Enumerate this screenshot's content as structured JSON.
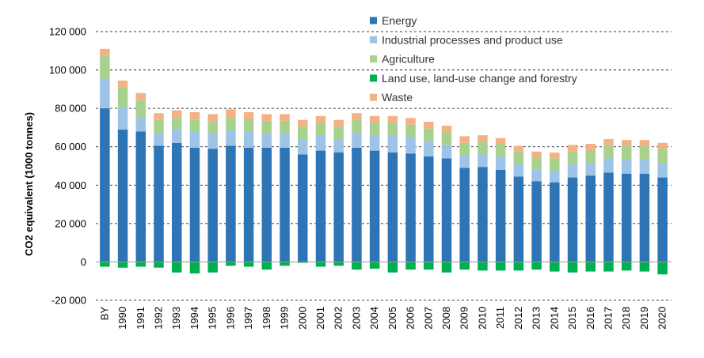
{
  "chart_data": {
    "type": "bar",
    "stacked": true,
    "ylabel": "CO2 equivalent (1000 tonnes)",
    "ylim": [
      -20000,
      120000
    ],
    "ytick_step": 20000,
    "ytick_labels": [
      "-20 000",
      "0",
      "20 000",
      "40 000",
      "60 000",
      "80 000",
      "100 000",
      "120 000"
    ],
    "grid": "horizontal dashed",
    "legend_position": "top-right",
    "categories": [
      "BY",
      "1990",
      "1991",
      "1992",
      "1993",
      "1994",
      "1995",
      "1996",
      "1997",
      "1998",
      "1999",
      "2000",
      "2001",
      "2002",
      "2003",
      "2004",
      "2005",
      "2006",
      "2007",
      "2008",
      "2009",
      "2010",
      "2011",
      "2012",
      "2013",
      "2014",
      "2015",
      "2016",
      "2017",
      "2018",
      "2019",
      "2020"
    ],
    "series": [
      {
        "name": "Energy",
        "color": "#2E75B6",
        "values": [
          80000,
          69000,
          68000,
          60500,
          62000,
          59500,
          59000,
          60500,
          59500,
          59500,
          59500,
          56000,
          58000,
          57000,
          59500,
          58000,
          57000,
          56500,
          55000,
          54000,
          49000,
          49500,
          48000,
          44500,
          42000,
          41500,
          44000,
          45000,
          46500,
          46000,
          46000,
          44000
        ]
      },
      {
        "name": "Industrial processes and product use",
        "color": "#9DC3E6",
        "values": [
          15500,
          11500,
          7500,
          6500,
          7000,
          8500,
          8000,
          8000,
          8500,
          7500,
          7500,
          8000,
          8000,
          7000,
          8000,
          8000,
          9000,
          8500,
          8000,
          7000,
          6500,
          6500,
          7000,
          6500,
          6000,
          6000,
          7000,
          6500,
          7500,
          7500,
          7500,
          7500
        ]
      },
      {
        "name": "Agriculture",
        "color": "#A9D18E",
        "values": [
          12000,
          10500,
          9000,
          7000,
          6500,
          6000,
          6000,
          7000,
          6500,
          6500,
          6500,
          6500,
          6500,
          6500,
          6500,
          6500,
          6500,
          6500,
          6500,
          6500,
          6500,
          6500,
          6500,
          6500,
          6500,
          6500,
          6500,
          6500,
          7000,
          7000,
          7000,
          7500
        ]
      },
      {
        "name": "Land use, land-use change and forestry",
        "color": "#00B050",
        "values": [
          -2500,
          -3000,
          -2500,
          -3000,
          -5500,
          -6000,
          -5500,
          -2000,
          -2500,
          -4000,
          -2000,
          -500,
          -2500,
          -2000,
          -4000,
          -3500,
          -5500,
          -4000,
          -4000,
          -5500,
          -4000,
          -4500,
          -4500,
          -4500,
          -4000,
          -5000,
          -5500,
          -5000,
          -5000,
          -4500,
          -5000,
          -6500
        ]
      },
      {
        "name": "Waste",
        "color": "#F4B183",
        "values": [
          3500,
          3500,
          3500,
          3500,
          3500,
          4000,
          4000,
          4000,
          3500,
          3500,
          3500,
          3500,
          3500,
          3500,
          3500,
          3500,
          3500,
          3500,
          3500,
          3500,
          3500,
          3500,
          3000,
          3000,
          3000,
          3000,
          3500,
          3500,
          3000,
          3000,
          3000,
          3000
        ]
      }
    ]
  }
}
